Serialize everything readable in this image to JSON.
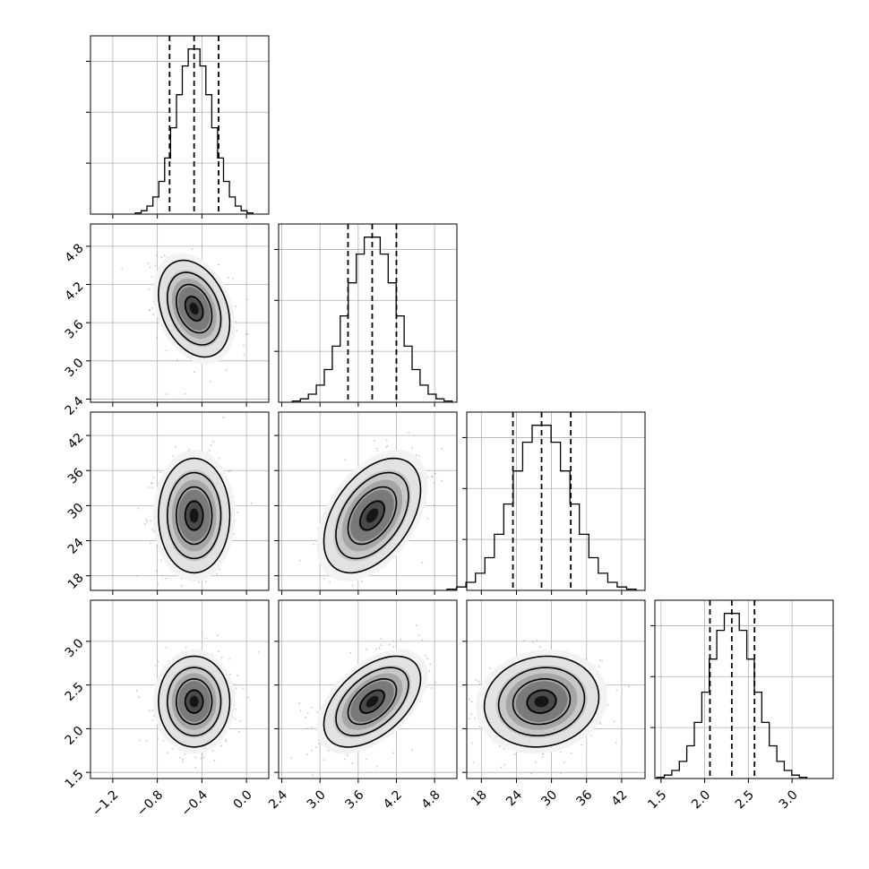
{
  "chart_data": {
    "type": "corner",
    "grid": true,
    "parameters": [
      {
        "range": [
          -1.4,
          0.2
        ],
        "ticks": [
          -1.2,
          -0.8,
          -0.4,
          0.0
        ],
        "tick_labels": [
          "−1.2",
          "−0.8",
          "−0.4",
          "0.0"
        ],
        "quantiles": [
          -0.69,
          -0.47,
          -0.25
        ],
        "mean": -0.47,
        "sd": 0.16
      },
      {
        "range": [
          2.35,
          5.15
        ],
        "ticks": [
          2.4,
          3.0,
          3.6,
          4.2,
          4.8
        ],
        "tick_labels": [
          "2.4",
          "3.0",
          "3.6",
          "4.2",
          "4.8"
        ],
        "quantiles": [
          3.44,
          3.82,
          4.2
        ],
        "mean": 3.82,
        "sd": 0.38
      },
      {
        "range": [
          15.5,
          46.0
        ],
        "ticks": [
          18,
          24,
          30,
          36,
          42
        ],
        "tick_labels": [
          "18",
          "24",
          "30",
          "36",
          "42"
        ],
        "quantiles": [
          23.4,
          28.3,
          33.3
        ],
        "mean": 28.3,
        "sd": 4.9
      },
      {
        "range": [
          1.43,
          3.47
        ],
        "ticks": [
          1.5,
          2.0,
          2.5,
          3.0
        ],
        "tick_labels": [
          "1.5",
          "2.0",
          "2.5",
          "3.0"
        ],
        "quantiles": [
          2.06,
          2.31,
          2.57
        ],
        "mean": 2.31,
        "sd": 0.26
      }
    ],
    "hist_bins": 20,
    "correlations": [
      [
        1.0,
        -0.3,
        0.0,
        0.0
      ],
      [
        -0.3,
        1.0,
        0.45,
        0.5
      ],
      [
        0.0,
        0.45,
        1.0,
        0.1
      ],
      [
        0.0,
        0.5,
        0.1,
        1.0
      ]
    ],
    "contour_levels_sigma": [
      0.5,
      1.0,
      1.5,
      2.0
    ],
    "colors": {
      "frame": "#000000",
      "grid": "#b0b0b0",
      "points": "#999999",
      "density": "#000000",
      "quantile_line": "#000000"
    }
  }
}
